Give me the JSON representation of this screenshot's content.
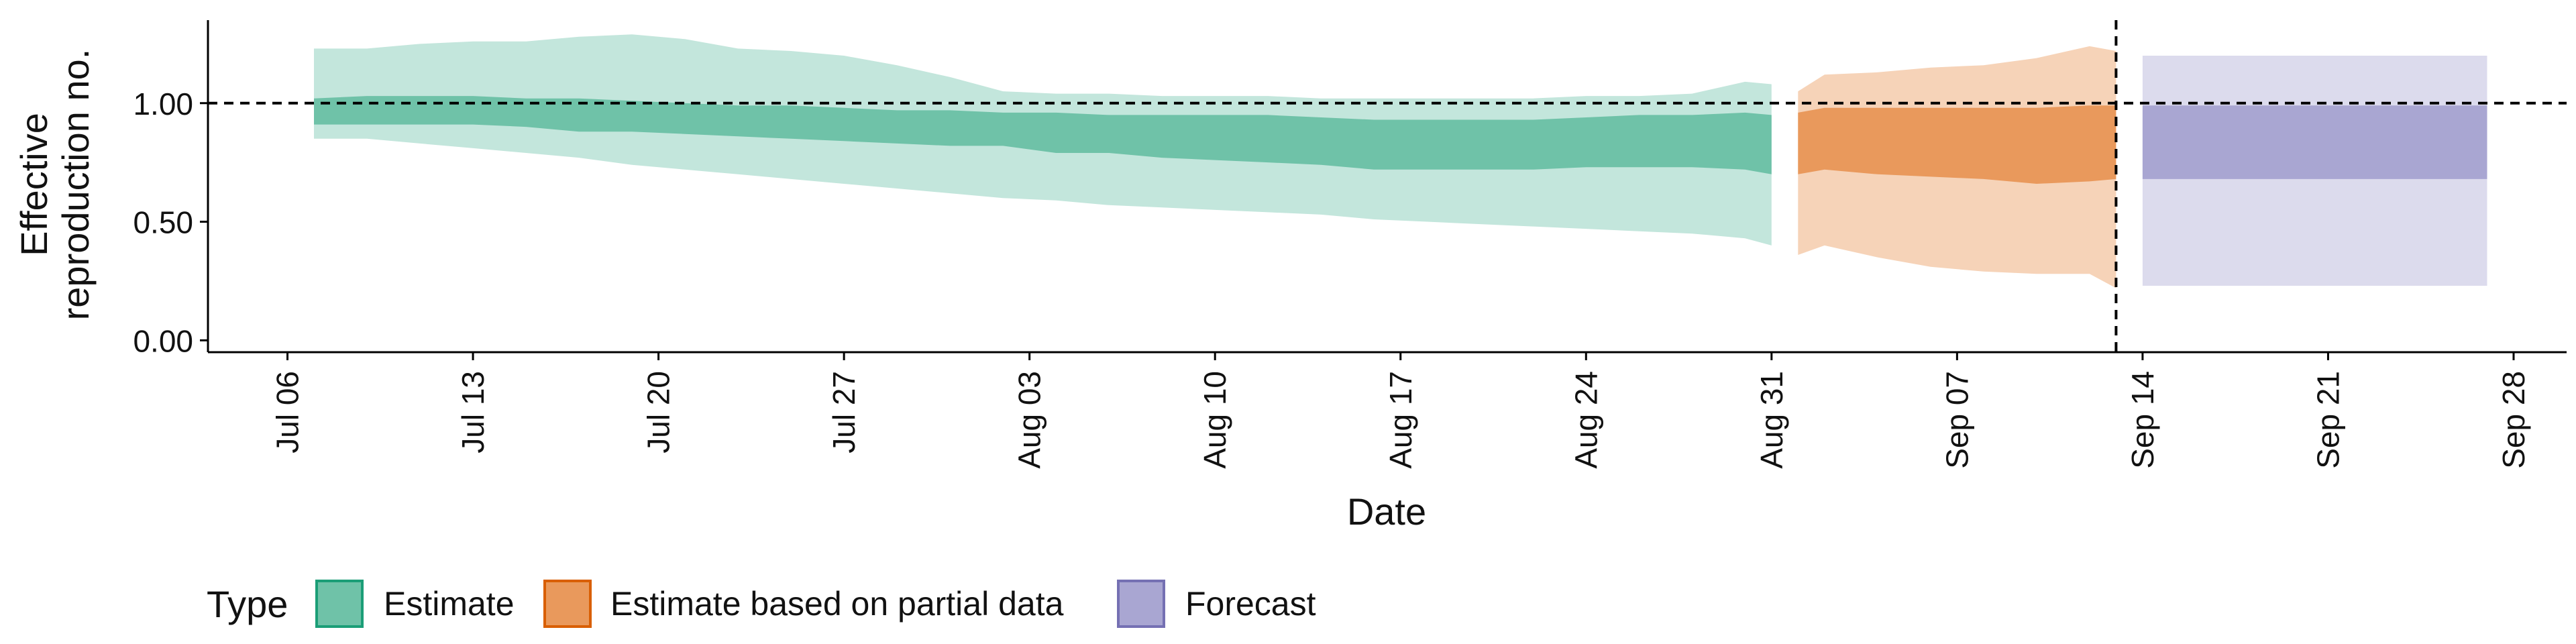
{
  "chart_data": {
    "type": "area",
    "xlabel": "Date",
    "ylabel_lines": [
      "Effective",
      "reproduction no."
    ],
    "x_ticks": [
      "Jul 06",
      "Jul 13",
      "Jul 20",
      "Jul 27",
      "Aug 03",
      "Aug 10",
      "Aug 17",
      "Aug 24",
      "Aug 31",
      "Sep 07",
      "Sep 14",
      "Sep 21",
      "Sep 28"
    ],
    "y_ticks": [
      "0.00",
      "0.50",
      "1.00"
    ],
    "ylim": [
      -0.05,
      1.35
    ],
    "x_range": [
      "2020-07-03",
      "2020-09-30"
    ],
    "reference_line_y": 1.0,
    "vertical_line_date": "2020-09-13",
    "grid": false,
    "legend": {
      "title": "Type",
      "position": "bottom-left",
      "items": [
        "Estimate",
        "Estimate based on partial data",
        "Forecast"
      ]
    },
    "colors": {
      "estimate_inner": "#6fc2a8",
      "estimate_outer": "#c3e6dc",
      "estimate_border": "#1b9e77",
      "partial_inner": "#e9995c",
      "partial_outer": "#f6d3b8",
      "partial_border": "#d95f02",
      "forecast_inner": "#a9a6d2",
      "forecast_outer": "#dcdbed",
      "forecast_border": "#7570b3"
    },
    "series": [
      {
        "name": "Estimate",
        "dates": [
          "2020-07-07",
          "2020-07-09",
          "2020-07-11",
          "2020-07-13",
          "2020-07-15",
          "2020-07-17",
          "2020-07-19",
          "2020-07-21",
          "2020-07-23",
          "2020-07-25",
          "2020-07-27",
          "2020-07-29",
          "2020-07-31",
          "2020-08-02",
          "2020-08-04",
          "2020-08-06",
          "2020-08-08",
          "2020-08-10",
          "2020-08-12",
          "2020-08-14",
          "2020-08-16",
          "2020-08-18",
          "2020-08-20",
          "2020-08-22",
          "2020-08-24",
          "2020-08-26",
          "2020-08-28",
          "2020-08-30",
          "2020-08-31"
        ],
        "outer_upper": [
          1.23,
          1.23,
          1.25,
          1.26,
          1.26,
          1.28,
          1.29,
          1.27,
          1.23,
          1.22,
          1.2,
          1.16,
          1.11,
          1.05,
          1.04,
          1.04,
          1.03,
          1.03,
          1.03,
          1.02,
          1.02,
          1.02,
          1.02,
          1.02,
          1.03,
          1.03,
          1.04,
          1.09,
          1.08
        ],
        "inner_upper": [
          1.02,
          1.03,
          1.03,
          1.03,
          1.02,
          1.02,
          1.01,
          1.0,
          0.99,
          0.99,
          0.98,
          0.97,
          0.97,
          0.96,
          0.96,
          0.95,
          0.95,
          0.95,
          0.95,
          0.94,
          0.93,
          0.93,
          0.93,
          0.93,
          0.94,
          0.95,
          0.95,
          0.96,
          0.95
        ],
        "inner_lower": [
          0.91,
          0.91,
          0.91,
          0.91,
          0.9,
          0.88,
          0.88,
          0.87,
          0.86,
          0.85,
          0.84,
          0.83,
          0.82,
          0.82,
          0.79,
          0.79,
          0.77,
          0.76,
          0.75,
          0.74,
          0.72,
          0.72,
          0.72,
          0.72,
          0.73,
          0.73,
          0.73,
          0.72,
          0.7
        ],
        "outer_lower": [
          0.85,
          0.85,
          0.83,
          0.81,
          0.79,
          0.77,
          0.74,
          0.72,
          0.7,
          0.68,
          0.66,
          0.64,
          0.62,
          0.6,
          0.59,
          0.57,
          0.56,
          0.55,
          0.54,
          0.53,
          0.51,
          0.5,
          0.49,
          0.48,
          0.47,
          0.46,
          0.45,
          0.43,
          0.4
        ]
      },
      {
        "name": "Estimate based on partial data",
        "dates": [
          "2020-09-01",
          "2020-09-02",
          "2020-09-04",
          "2020-09-06",
          "2020-09-08",
          "2020-09-10",
          "2020-09-12",
          "2020-09-13"
        ],
        "outer_upper": [
          1.05,
          1.12,
          1.13,
          1.15,
          1.16,
          1.19,
          1.24,
          1.22
        ],
        "inner_upper": [
          0.96,
          0.98,
          0.98,
          0.98,
          0.98,
          0.98,
          0.99,
          0.99
        ],
        "inner_lower": [
          0.7,
          0.72,
          0.7,
          0.69,
          0.68,
          0.66,
          0.67,
          0.68
        ],
        "outer_lower": [
          0.36,
          0.4,
          0.35,
          0.31,
          0.29,
          0.28,
          0.28,
          0.22
        ]
      },
      {
        "name": "Forecast",
        "dates": [
          "2020-09-14",
          "2020-09-27"
        ],
        "outer_upper": [
          1.2,
          1.2
        ],
        "inner_upper": [
          0.99,
          0.99
        ],
        "inner_lower": [
          0.68,
          0.68
        ],
        "outer_lower": [
          0.23,
          0.23
        ]
      }
    ]
  }
}
